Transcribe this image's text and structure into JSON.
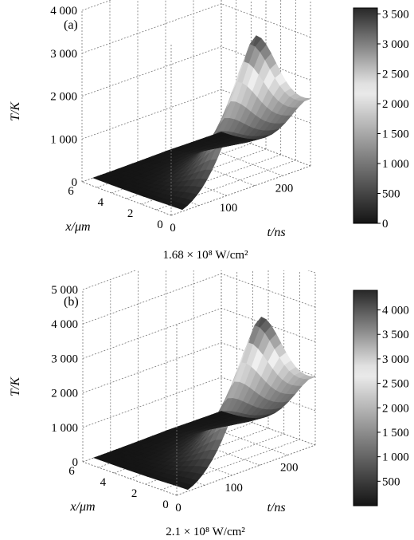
{
  "chart_data": [
    {
      "type": "surface",
      "panel_label": "(a)",
      "caption": "1.68 × 10⁸ W/cm²",
      "zlabel": "T/K",
      "xlabel": "x/μm",
      "tlabel": "t/ns",
      "x_ticks": [
        "0",
        "2",
        "4",
        "6"
      ],
      "t_ticks": [
        "0",
        "100",
        "200"
      ],
      "z_ticks": [
        "0",
        "1 000",
        "2 000",
        "3 000",
        "4 000"
      ],
      "zlim": [
        0,
        4000
      ],
      "xlim": [
        0,
        6
      ],
      "tlim": [
        0,
        250
      ],
      "colorbar_ticks": [
        "0",
        "500",
        "1 000",
        "1 500",
        "2 000",
        "2 500",
        "3 000",
        "3 500"
      ],
      "colorbar_range": [
        0,
        3600
      ],
      "colormap": "gray",
      "peak": {
        "t": 150,
        "x": 0,
        "T": 3500
      },
      "t_end_value": 1500,
      "x_decay_um": 3.5
    },
    {
      "type": "surface",
      "panel_label": "(b)",
      "caption": "2.1 × 10⁸ W/cm²",
      "zlabel": "T/K",
      "xlabel": "x/μm",
      "tlabel": "t/ns",
      "x_ticks": [
        "0",
        "2",
        "4",
        "6"
      ],
      "t_ticks": [
        "0",
        "100",
        "200"
      ],
      "z_ticks": [
        "0",
        "1 000",
        "2 000",
        "3 000",
        "4 000",
        "5 000"
      ],
      "zlim": [
        0,
        5000
      ],
      "xlim": [
        0,
        6
      ],
      "tlim": [
        0,
        250
      ],
      "colorbar_ticks": [
        "500",
        "1 000",
        "1 500",
        "2 000",
        "2 500",
        "3 000",
        "3 500",
        "4 000"
      ],
      "colorbar_range": [
        0,
        4400
      ],
      "colormap": "gray",
      "peak": {
        "t": 150,
        "x": 0,
        "T": 4300
      },
      "t_end_value": 1900,
      "x_decay_um": 3.5
    }
  ]
}
